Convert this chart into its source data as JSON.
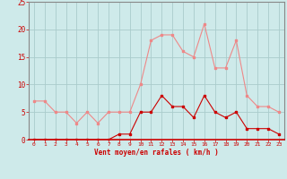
{
  "hours": [
    0,
    1,
    2,
    3,
    4,
    5,
    6,
    7,
    8,
    9,
    10,
    11,
    12,
    13,
    14,
    15,
    16,
    17,
    18,
    19,
    20,
    21,
    22,
    23
  ],
  "wind_avg": [
    0,
    0,
    0,
    0,
    0,
    0,
    0,
    0,
    1,
    1,
    5,
    5,
    8,
    6,
    6,
    4,
    8,
    5,
    4,
    5,
    2,
    2,
    2,
    1
  ],
  "wind_gust": [
    7,
    7,
    5,
    5,
    3,
    5,
    3,
    5,
    5,
    5,
    10,
    18,
    19,
    19,
    16,
    15,
    21,
    13,
    13,
    18,
    8,
    6,
    6,
    5
  ],
  "bg_color": "#ceeaea",
  "grid_color": "#aacccc",
  "line_avg_color": "#cc0000",
  "line_gust_color": "#ee8888",
  "xlabel": "Vent moyen/en rafales ( km/h )",
  "xlabel_color": "#cc0000",
  "tick_color": "#cc0000",
  "spine_color": "#888888",
  "ylim": [
    0,
    25
  ],
  "yticks": [
    0,
    5,
    10,
    15,
    20,
    25
  ]
}
